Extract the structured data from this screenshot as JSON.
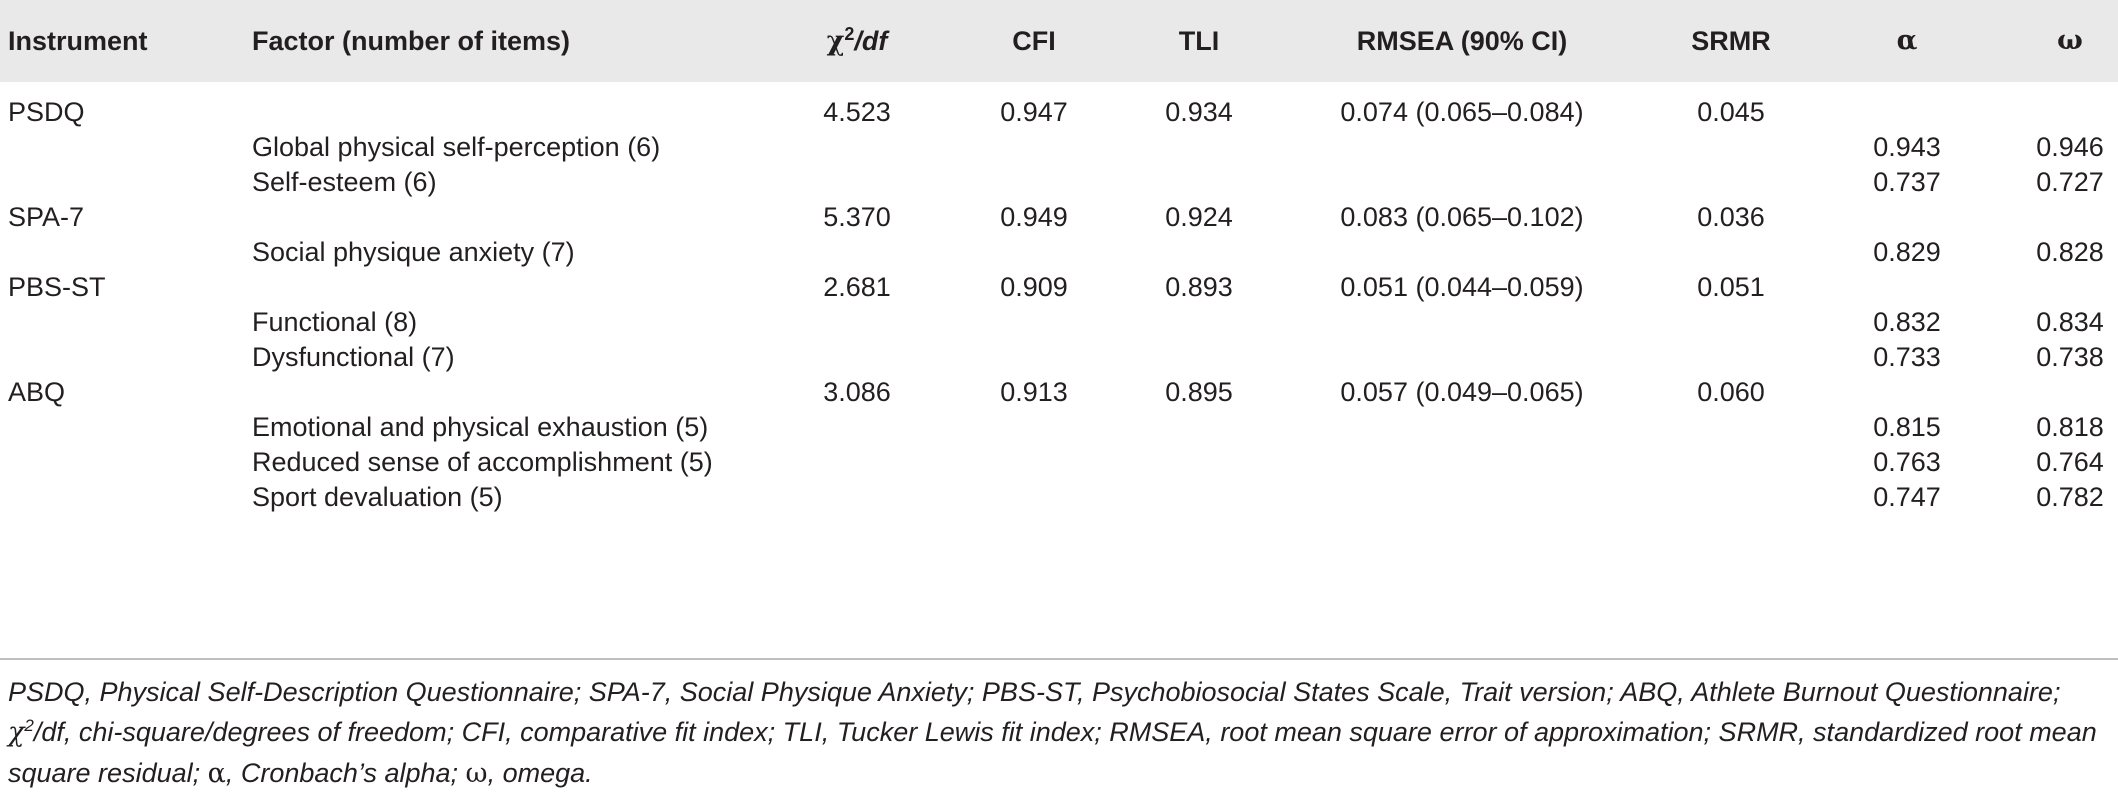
{
  "table": {
    "headers": {
      "instrument": "Instrument",
      "factor": "Factor (number of items)",
      "chi_symbol": "χ",
      "chi_sup": "2",
      "chi_df": "/df",
      "cfi": "CFI",
      "tli": "TLI",
      "rmsea": "RMSEA (90% CI)",
      "srmr": "SRMR",
      "alpha": "α",
      "omega": "ω"
    },
    "rows": [
      {
        "instrument": "PSDQ",
        "factor": "",
        "chi": "4.523",
        "cfi": "0.947",
        "tli": "0.934",
        "rmsea": "0.074 (0.065–0.084)",
        "srmr": "0.045",
        "alpha": "",
        "omega": ""
      },
      {
        "instrument": "",
        "factor": "Global physical self-perception (6)",
        "chi": "",
        "cfi": "",
        "tli": "",
        "rmsea": "",
        "srmr": "",
        "alpha": "0.943",
        "omega": "0.946"
      },
      {
        "instrument": "",
        "factor": "Self-esteem (6)",
        "chi": "",
        "cfi": "",
        "tli": "",
        "rmsea": "",
        "srmr": "",
        "alpha": "0.737",
        "omega": "0.727"
      },
      {
        "instrument": "SPA-7",
        "factor": "",
        "chi": "5.370",
        "cfi": "0.949",
        "tli": "0.924",
        "rmsea": "0.083 (0.065–0.102)",
        "srmr": "0.036",
        "alpha": "",
        "omega": ""
      },
      {
        "instrument": "",
        "factor": "Social physique anxiety (7)",
        "chi": "",
        "cfi": "",
        "tli": "",
        "rmsea": "",
        "srmr": "",
        "alpha": "0.829",
        "omega": "0.828"
      },
      {
        "instrument": "PBS-ST",
        "factor": "",
        "chi": "2.681",
        "cfi": "0.909",
        "tli": "0.893",
        "rmsea": "0.051 (0.044–0.059)",
        "srmr": "0.051",
        "alpha": "",
        "omega": ""
      },
      {
        "instrument": "",
        "factor": "Functional (8)",
        "chi": "",
        "cfi": "",
        "tli": "",
        "rmsea": "",
        "srmr": "",
        "alpha": "0.832",
        "omega": "0.834"
      },
      {
        "instrument": "",
        "factor": "Dysfunctional (7)",
        "chi": "",
        "cfi": "",
        "tli": "",
        "rmsea": "",
        "srmr": "",
        "alpha": "0.733",
        "omega": "0.738"
      },
      {
        "instrument": "ABQ",
        "factor": "",
        "chi": "3.086",
        "cfi": "0.913",
        "tli": "0.895",
        "rmsea": "0.057 (0.049–0.065)",
        "srmr": "0.060",
        "alpha": "",
        "omega": ""
      },
      {
        "instrument": "",
        "factor": "Emotional and physical exhaustion (5)",
        "chi": "",
        "cfi": "",
        "tli": "",
        "rmsea": "",
        "srmr": "",
        "alpha": "0.815",
        "omega": "0.818"
      },
      {
        "instrument": "",
        "factor": "Reduced sense of accomplishment (5)",
        "chi": "",
        "cfi": "",
        "tli": "",
        "rmsea": "",
        "srmr": "",
        "alpha": "0.763",
        "omega": "0.764"
      },
      {
        "instrument": "",
        "factor": "Sport devaluation (5)",
        "chi": "",
        "cfi": "",
        "tli": "",
        "rmsea": "",
        "srmr": "",
        "alpha": "0.747",
        "omega": "0.782"
      }
    ]
  },
  "footnote": {
    "part1": "PSDQ, Physical Self-Description Questionnaire; SPA-7, Social Physique Anxiety; PBS-ST, Psychobiosocial States Scale, Trait version; ABQ, Athlete Burnout Questionnaire;",
    "chi_symbol": "χ",
    "chi_sup": "2",
    "part2": "/df, chi-square/degrees of freedom; CFI, comparative fit index; TLI, Tucker Lewis fit index; RMSEA, root mean square error of approximation; SRMR, standardized root mean square residual;",
    "alpha_symbol": "α",
    "part3": ", Cronbach’s alpha;",
    "omega_symbol": "ω",
    "part4": ", omega."
  }
}
